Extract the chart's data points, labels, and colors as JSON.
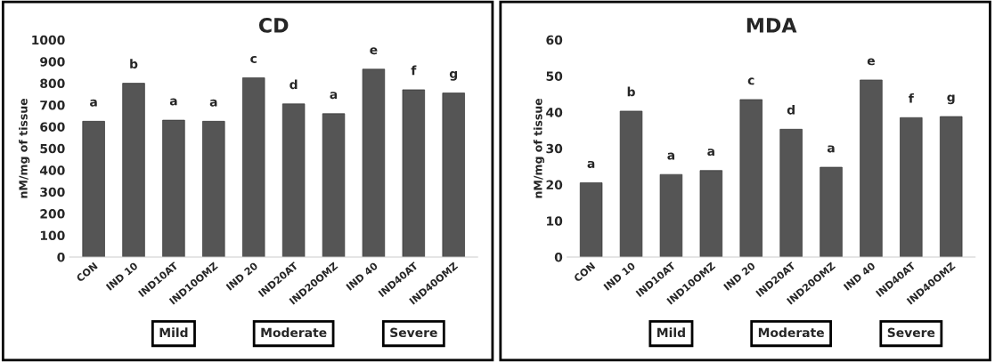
{
  "chart_data": [
    {
      "type": "bar",
      "title": "CD",
      "ylabel": "nM/mg of tissue",
      "categories": [
        "CON",
        "IND 10",
        "IND10AT",
        "IND10OMZ",
        "IND 20",
        "IND20AT",
        "IND20OMZ",
        "IND 40",
        "IND40AT",
        "IND40OMZ"
      ],
      "values": [
        625,
        800,
        630,
        625,
        825,
        705,
        660,
        865,
        770,
        755
      ],
      "value_labels": [
        "a",
        "b",
        "a",
        "a",
        "c",
        "d",
        "a",
        "e",
        "f",
        "g"
      ],
      "color": "#555555",
      "ylim": [
        0,
        1000
      ],
      "yticks": [
        0,
        100,
        200,
        300,
        400,
        500,
        600,
        700,
        800,
        900,
        1000
      ],
      "grid": false,
      "legend": false,
      "annotations": [
        "Mild",
        "Moderate",
        "Severe"
      ]
    },
    {
      "type": "bar",
      "title": "MDA",
      "ylabel": "nM/mg of tissue",
      "categories": [
        "CON",
        "IND 10",
        "IND10AT",
        "IND10OMZ",
        "IND 20",
        "IND20AT",
        "IND20OMZ",
        "IND 40",
        "IND40AT",
        "IND40OMZ"
      ],
      "values": [
        20.5,
        40.3,
        22.8,
        23.9,
        43.5,
        35.3,
        24.8,
        48.9,
        38.5,
        38.8
      ],
      "value_labels": [
        "a",
        "b",
        "a",
        "a",
        "c",
        "d",
        "a",
        "e",
        "f",
        "g"
      ],
      "color": "#555555",
      "ylim": [
        0,
        60
      ],
      "yticks": [
        0,
        10,
        20,
        30,
        40,
        50,
        60
      ],
      "grid": false,
      "legend": false,
      "annotations": [
        "Mild",
        "Moderate",
        "Severe"
      ]
    }
  ]
}
